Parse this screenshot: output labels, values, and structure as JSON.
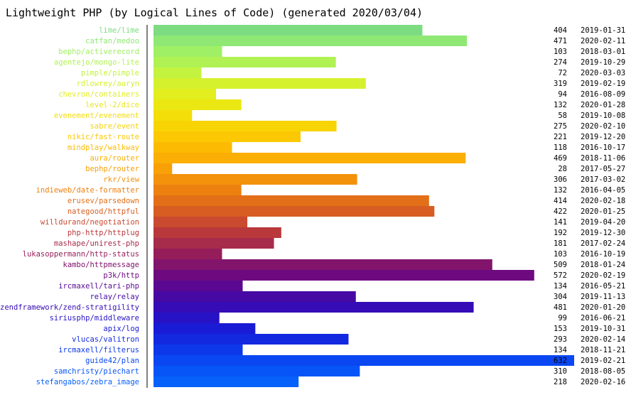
{
  "chart_data": {
    "type": "bar",
    "orientation": "horizontal",
    "title": "Lightweight PHP (by Logical Lines of Code) (generated 2020/03/04)",
    "xlim": [
      0,
      632
    ],
    "grid": false,
    "legend": "none",
    "rows": [
      {
        "name": "lime/lime",
        "value": 404,
        "date": "2019-01-31",
        "color": "#7ddc82"
      },
      {
        "name": "catfan/medoo",
        "value": 471,
        "date": "2020-02-11",
        "color": "#8fe874"
      },
      {
        "name": "bephp/activerecord",
        "value": 103,
        "date": "2018-03-01",
        "color": "#9ff064"
      },
      {
        "name": "agentejo/mongo-lite",
        "value": 274,
        "date": "2019-10-29",
        "color": "#b0f254"
      },
      {
        "name": "pimple/pimple",
        "value": 72,
        "date": "2020-03-03",
        "color": "#c4f33f"
      },
      {
        "name": "rdlowrey/auryn",
        "value": 319,
        "date": "2019-02-19",
        "color": "#d5f12e"
      },
      {
        "name": "chevron/containers",
        "value": 94,
        "date": "2016-08-09",
        "color": "#e2ee1e"
      },
      {
        "name": "level-2/dice",
        "value": 132,
        "date": "2020-01-28",
        "color": "#ebe712"
      },
      {
        "name": "evenement/evenement",
        "value": 58,
        "date": "2019-10-08",
        "color": "#f3de0a"
      },
      {
        "name": "sabre/event",
        "value": 275,
        "date": "2020-02-10",
        "color": "#f8d405"
      },
      {
        "name": "nikic/fast-route",
        "value": 221,
        "date": "2019-12-20",
        "color": "#fbc803"
      },
      {
        "name": "mindplay/walkway",
        "value": 118,
        "date": "2016-10-17",
        "color": "#fcbb02"
      },
      {
        "name": "aura/router",
        "value": 469,
        "date": "2018-11-06",
        "color": "#fbae04"
      },
      {
        "name": "bephp/router",
        "value": 28,
        "date": "2017-05-27",
        "color": "#f8a006"
      },
      {
        "name": "rkr/view",
        "value": 306,
        "date": "2017-03-02",
        "color": "#f3920a"
      },
      {
        "name": "indieweb/date-formatter",
        "value": 132,
        "date": "2016-04-05",
        "color": "#ec8110"
      },
      {
        "name": "erusev/parsedown",
        "value": 414,
        "date": "2020-02-18",
        "color": "#e36f18"
      },
      {
        "name": "nategood/httpful",
        "value": 422,
        "date": "2020-01-25",
        "color": "#d85d22"
      },
      {
        "name": "willdurand/negotiation",
        "value": 141,
        "date": "2019-04-20",
        "color": "#c94a2f"
      },
      {
        "name": "php-http/httplug",
        "value": 192,
        "date": "2019-12-30",
        "color": "#b8383b"
      },
      {
        "name": "mashape/unirest-php",
        "value": 181,
        "date": "2017-02-24",
        "color": "#a72b4a"
      },
      {
        "name": "lukasoppermann/http-status",
        "value": 103,
        "date": "2016-10-19",
        "color": "#951e5a"
      },
      {
        "name": "kambo/httpmessage",
        "value": 509,
        "date": "2018-01-24",
        "color": "#82146c"
      },
      {
        "name": "p3k/http",
        "value": 572,
        "date": "2020-02-19",
        "color": "#6e0a80"
      },
      {
        "name": "ircmaxell/tari-php",
        "value": 134,
        "date": "2016-05-21",
        "color": "#5a0892"
      },
      {
        "name": "relay/relay",
        "value": 304,
        "date": "2019-11-13",
        "color": "#4709a4"
      },
      {
        "name": "zendframework/zend-stratigility",
        "value": 481,
        "date": "2020-01-20",
        "color": "#350cb6"
      },
      {
        "name": "siriusphp/middleware",
        "value": 99,
        "date": "2016-06-21",
        "color": "#2712c6"
      },
      {
        "name": "apix/log",
        "value": 153,
        "date": "2019-10-31",
        "color": "#1a1bd4"
      },
      {
        "name": "vlucas/valitron",
        "value": 293,
        "date": "2020-02-14",
        "color": "#1229e0"
      },
      {
        "name": "ircmaxell/filterus",
        "value": 134,
        "date": "2018-11-21",
        "color": "#0d38ea"
      },
      {
        "name": "guide42/plan",
        "value": 632,
        "date": "2019-02-21",
        "color": "#0a47f2"
      },
      {
        "name": "samchristy/piechart",
        "value": 310,
        "date": "2018-08-05",
        "color": "#0855f7"
      },
      {
        "name": "stefangabos/zebra_image",
        "value": 218,
        "date": "2020-02-16",
        "color": "#0661fb"
      }
    ]
  }
}
